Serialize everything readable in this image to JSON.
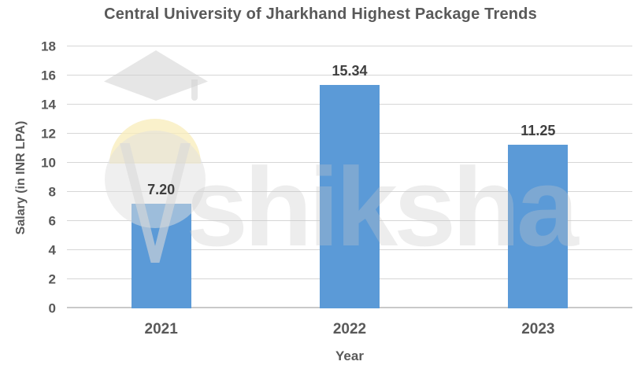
{
  "chart_data": {
    "type": "bar",
    "title": "Central University of Jharkhand Highest Package Trends",
    "xlabel": "Year",
    "ylabel": "Salary (in INR LPA)",
    "categories": [
      "2021",
      "2022",
      "2023"
    ],
    "values": [
      7.2,
      15.34,
      11.25
    ],
    "value_labels": [
      "7.20",
      "15.34",
      "11.25"
    ],
    "ylim": [
      0,
      18
    ],
    "ytick_step": 2,
    "grid": true,
    "legend": "none",
    "colors": {
      "bar": "#5b9ad7",
      "title_text": "#595959",
      "axis_text": "#595959",
      "data_label_text": "#3f3f3f",
      "gridline": "#d6d6d6",
      "axis_line": "#c9c9c9"
    }
  },
  "watermark": {
    "text": "shiksha",
    "logo": "graduation-cap-crescent"
  }
}
